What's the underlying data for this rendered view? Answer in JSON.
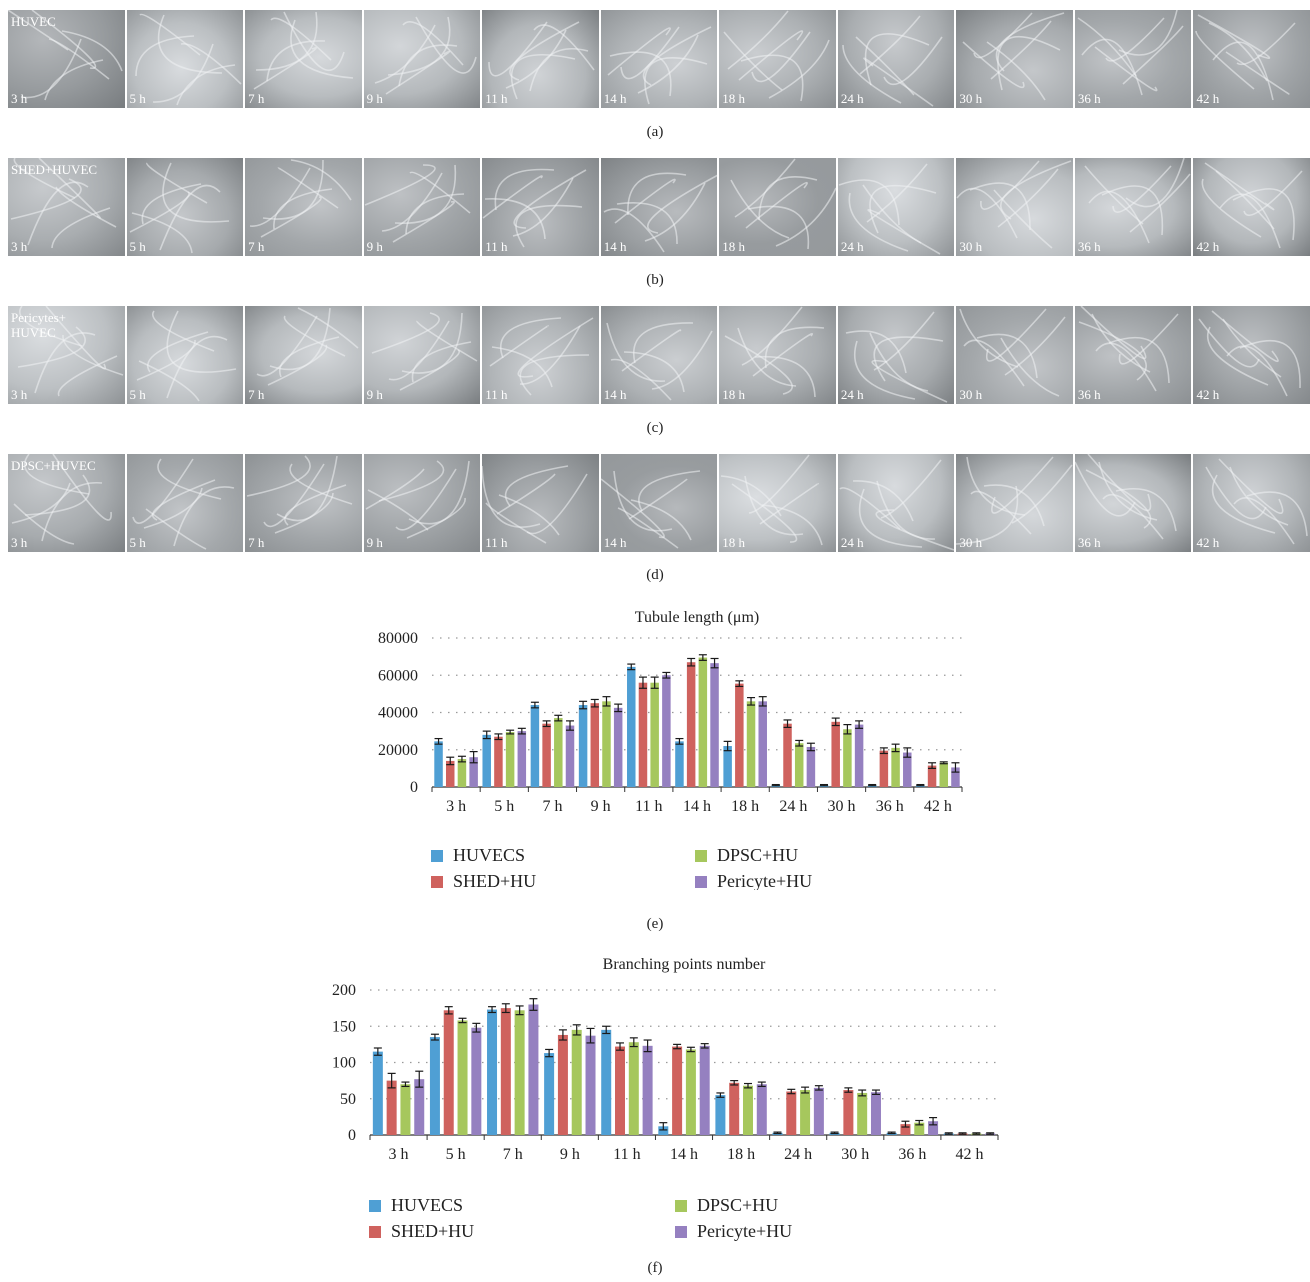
{
  "panels": [
    {
      "group_label": "HUVEC",
      "caption": "(a)",
      "hue": "#a8adb1"
    },
    {
      "group_label": "SHED+HUVEC",
      "caption": "(b)",
      "hue": "#a9afb2"
    },
    {
      "group_label": "Pericytes+\nHUVEC",
      "caption": "(c)",
      "hue": "#a4aaad"
    },
    {
      "group_label": "DPSC+HUVEC",
      "caption": "(d)",
      "hue": "#a7acaf"
    }
  ],
  "time_labels": [
    "3 h",
    "5 h",
    "7 h",
    "9 h",
    "11 h",
    "14 h",
    "18 h",
    "24 h",
    "30 h",
    "36 h",
    "42 h"
  ],
  "colors": {
    "HUVECS": "#4f9fd4",
    "SHED+HU": "#cf625e",
    "DPSC+HU": "#a6c75d",
    "Pericyte+HU": "#9580c0",
    "grid": "#999999",
    "axis": "#333333"
  },
  "chart_data": [
    {
      "type": "bar",
      "title": "Tubule length (μm)",
      "caption": "(e)",
      "categories": [
        "3 h",
        "5 h",
        "7 h",
        "9 h",
        "11 h",
        "14 h",
        "18 h",
        "24 h",
        "30 h",
        "36 h",
        "42 h"
      ],
      "ylim": [
        0,
        80000
      ],
      "yticks": [
        0,
        20000,
        40000,
        60000,
        80000
      ],
      "grid": true,
      "legend_position": "bottom",
      "series": [
        {
          "name": "HUVECS",
          "values": [
            24500,
            28000,
            44000,
            44000,
            64500,
            24500,
            22000,
            1000,
            1000,
            1000,
            1000
          ],
          "errors": [
            1500,
            2000,
            1500,
            2000,
            1500,
            1500,
            2500,
            300,
            300,
            300,
            300
          ]
        },
        {
          "name": "SHED+HU",
          "values": [
            14000,
            27000,
            34000,
            45000,
            56000,
            67000,
            55500,
            34000,
            35000,
            19500,
            11500
          ],
          "errors": [
            2000,
            1500,
            1500,
            2000,
            3000,
            2000,
            1500,
            2000,
            2000,
            1500,
            1500
          ]
        },
        {
          "name": "DPSC+HU",
          "values": [
            15000,
            29500,
            37000,
            46000,
            56000,
            69500,
            46000,
            23500,
            31000,
            21000,
            13000
          ],
          "errors": [
            1500,
            1000,
            1500,
            2500,
            3000,
            1500,
            2000,
            1500,
            2500,
            2000,
            500
          ]
        },
        {
          "name": "Pericyte+HU",
          "values": [
            16000,
            30000,
            33000,
            42500,
            60000,
            66500,
            46000,
            21500,
            33500,
            18500,
            10500
          ],
          "errors": [
            3000,
            1500,
            2500,
            2000,
            1500,
            2500,
            2500,
            2000,
            2000,
            2500,
            2500
          ]
        }
      ]
    },
    {
      "type": "bar",
      "title": "Branching points number",
      "caption": "(f)",
      "categories": [
        "3 h",
        "5 h",
        "7 h",
        "9 h",
        "11 h",
        "14 h",
        "18 h",
        "24 h",
        "30 h",
        "36 h",
        "42 h"
      ],
      "ylim": [
        0,
        200
      ],
      "yticks": [
        0,
        50,
        100,
        150,
        200
      ],
      "grid": true,
      "legend_position": "bottom",
      "series": [
        {
          "name": "HUVECS",
          "values": [
            115,
            135,
            173,
            113,
            145,
            12,
            55,
            3,
            3,
            3,
            2
          ],
          "errors": [
            5,
            4,
            4,
            5,
            5,
            5,
            3,
            1,
            1,
            1,
            1
          ]
        },
        {
          "name": "SHED+HU",
          "values": [
            75,
            172,
            175,
            138,
            122,
            122,
            72,
            60,
            62,
            15,
            2
          ],
          "errors": [
            10,
            5,
            6,
            7,
            5,
            3,
            3,
            3,
            3,
            4,
            1
          ]
        },
        {
          "name": "DPSC+HU",
          "values": [
            70,
            158,
            172,
            145,
            128,
            118,
            68,
            62,
            58,
            17,
            2
          ],
          "errors": [
            3,
            3,
            6,
            7,
            6,
            3,
            3,
            4,
            4,
            3,
            1
          ]
        },
        {
          "name": "Pericyte+HU",
          "values": [
            77,
            148,
            180,
            137,
            123,
            123,
            70,
            65,
            59,
            19,
            2
          ],
          "errors": [
            11,
            6,
            8,
            10,
            8,
            3,
            3,
            3,
            3,
            5,
            1
          ]
        }
      ]
    }
  ]
}
